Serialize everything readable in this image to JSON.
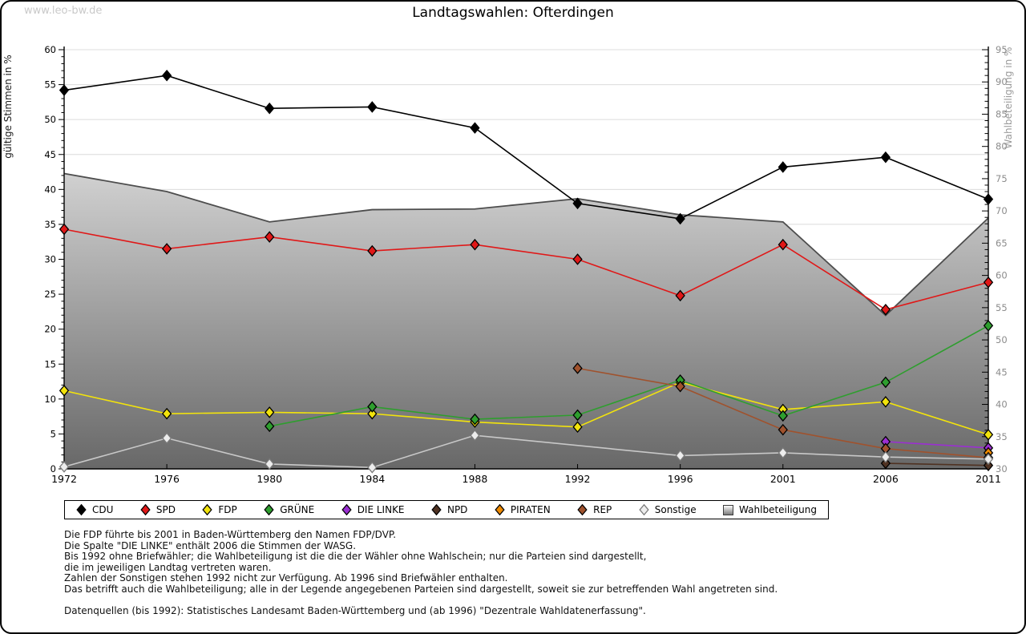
{
  "watermark": "www.leo-bw.de",
  "title": "Landtagswahlen: Ofterdingen",
  "chart_data": {
    "type": "line",
    "categories": [
      "1972",
      "1976",
      "1980",
      "1984",
      "1988",
      "1992",
      "1996",
      "2001",
      "2006",
      "2011"
    ],
    "left_axis": {
      "label": "gültige Stimmen in %",
      "min": 0,
      "max": 60,
      "step": 5,
      "minor_step": 1
    },
    "right_axis": {
      "label": "Wahlbeteiligung in %",
      "min": 30,
      "max": 95,
      "step": 5,
      "minor_step": 1
    },
    "grid": true,
    "legend_position": "bottom",
    "turnout_series": {
      "name": "Wahlbeteiligung",
      "type": "area",
      "axis": "right",
      "values": [
        75.8,
        73.0,
        68.3,
        70.2,
        70.3,
        71.9,
        69.4,
        68.3,
        53.8,
        68.9
      ],
      "fill_top": "#fcfcfc",
      "fill_bottom": "#686868",
      "edge_color": "#4d4d4d"
    },
    "series": [
      {
        "name": "CDU",
        "color": "#000000",
        "values": [
          54.2,
          56.3,
          51.6,
          51.8,
          48.8,
          38.0,
          35.8,
          43.2,
          44.6,
          38.6
        ]
      },
      {
        "name": "SPD",
        "color": "#e01818",
        "values": [
          34.3,
          31.5,
          33.2,
          31.2,
          32.1,
          30.0,
          24.8,
          32.1,
          22.8,
          26.7
        ]
      },
      {
        "name": "FDP",
        "color": "#f2e30c",
        "values": [
          11.2,
          7.9,
          8.1,
          7.9,
          6.7,
          6.0,
          12.4,
          8.5,
          9.6,
          4.9
        ]
      },
      {
        "name": "GRÜNE",
        "color": "#2e9e2e",
        "values": [
          null,
          null,
          6.1,
          8.9,
          7.1,
          7.7,
          12.7,
          7.6,
          12.4,
          20.5
        ]
      },
      {
        "name": "DIE LINKE",
        "color": "#9b2fd2",
        "values": [
          null,
          null,
          null,
          null,
          null,
          null,
          null,
          null,
          3.9,
          3.0
        ]
      },
      {
        "name": "NPD",
        "color": "#4f3222",
        "values": [
          null,
          null,
          null,
          null,
          null,
          null,
          null,
          null,
          0.8,
          0.5
        ]
      },
      {
        "name": "PIRATEN",
        "color": "#ee8a00",
        "values": [
          null,
          null,
          null,
          null,
          null,
          null,
          null,
          null,
          null,
          2.3
        ]
      },
      {
        "name": "REP",
        "color": "#a0522d",
        "values": [
          null,
          null,
          null,
          null,
          null,
          14.4,
          11.8,
          5.6,
          2.9,
          1.6
        ]
      },
      {
        "name": "Sonstige",
        "color": "#ededed",
        "line_color": "#c8c8c8",
        "marker_stroke": "#7a7a7a",
        "values": [
          0.3,
          4.4,
          0.7,
          0.2,
          4.8,
          null,
          1.9,
          2.3,
          1.7,
          1.4
        ]
      }
    ]
  },
  "notes": [
    "Die FDP führte bis 2001 in Baden-Württemberg den Namen FDP/DVP.",
    "Die Spalte \"DIE LINKE\" enthält 2006 die Stimmen der WASG.",
    "Bis 1992 ohne Briefwähler; die Wahlbeteiligung ist die die der Wähler ohne Wahlschein; nur die Parteien sind dargestellt,",
    "die im jeweiligen Landtag vertreten waren.",
    "Zahlen der Sonstigen stehen 1992 nicht zur Verfügung. Ab 1996 sind Briefwähler enthalten.",
    "Das betrifft auch die Wahlbeteiligung; alle in der Legende angegebenen Parteien sind dargestellt, soweit sie zur betreffenden Wahl angetreten sind.",
    "",
    "Datenquellen (bis 1992): Statistisches Landesamt Baden-Württemberg und (ab 1996) \"Dezentrale Wahldatenerfassung\"."
  ]
}
